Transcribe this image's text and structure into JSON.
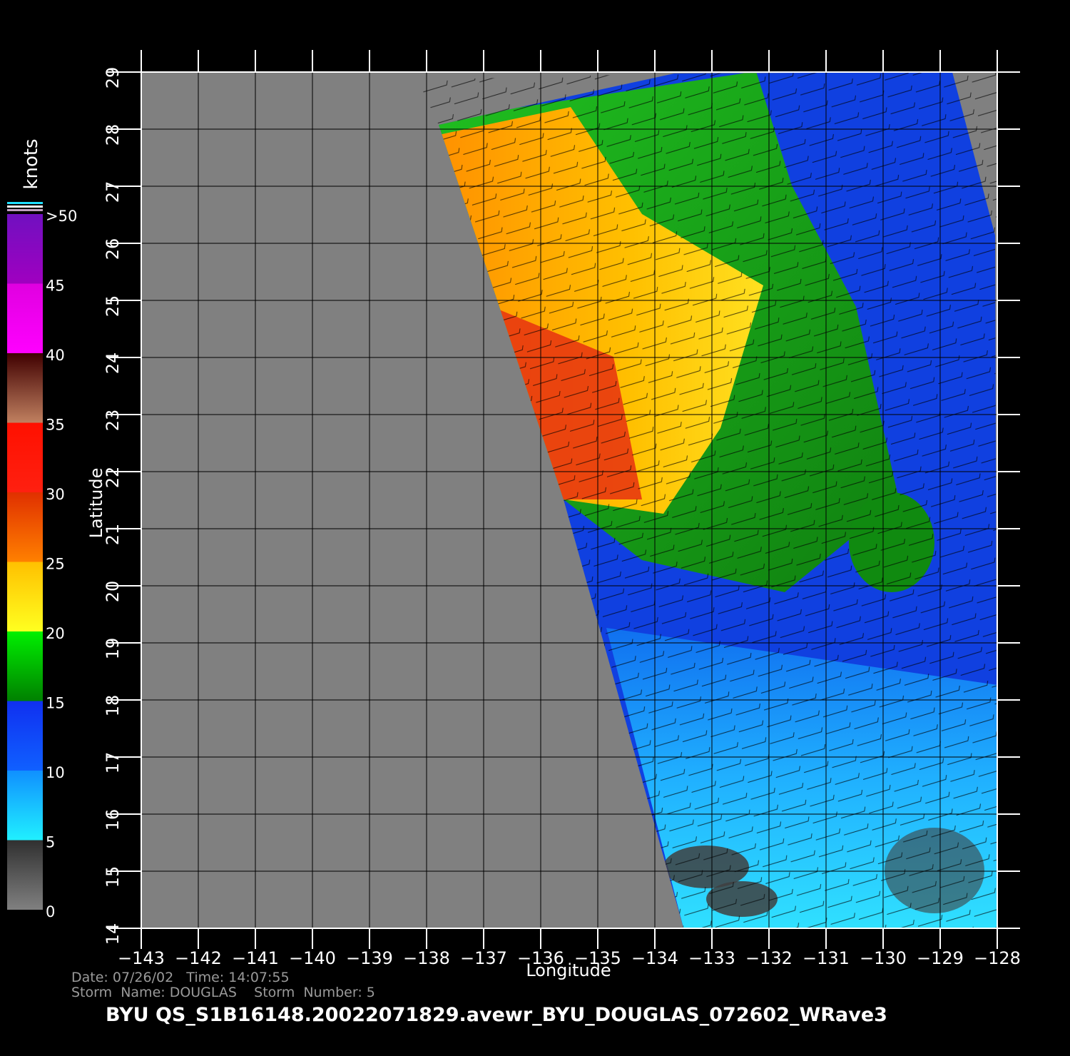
{
  "chart_data": {
    "type": "swath-map",
    "title": "BYU  QS_S1B16148.20022071829.avewr_BYU_DOUGLAS_072602_WRave3",
    "info": [
      "Date: 07/26/02   Time: 14:07:55",
      "Storm  Name: DOUGLAS    Storm  Number: 5"
    ],
    "x_label": "Longitude",
    "y_label": "Latitude",
    "xlim": [
      -143,
      -128
    ],
    "ylim": [
      14,
      29
    ],
    "xticks": [
      {
        "value": -143,
        "label": "−143"
      },
      {
        "value": -142,
        "label": "−142"
      },
      {
        "value": -141,
        "label": "−141"
      },
      {
        "value": -140,
        "label": "−140"
      },
      {
        "value": -139,
        "label": "−139"
      },
      {
        "value": -138,
        "label": "−138"
      },
      {
        "value": -137,
        "label": "−137"
      },
      {
        "value": -136,
        "label": "−136"
      },
      {
        "value": -135,
        "label": "−135"
      },
      {
        "value": -134,
        "label": "−134"
      },
      {
        "value": -133,
        "label": "−133"
      },
      {
        "value": -132,
        "label": "−132"
      },
      {
        "value": -131,
        "label": "−131"
      },
      {
        "value": -130,
        "label": "−130"
      },
      {
        "value": -129,
        "label": "−129"
      },
      {
        "value": -128,
        "label": "−128"
      }
    ],
    "yticks": [
      14,
      15,
      16,
      17,
      18,
      19,
      20,
      21,
      22,
      23,
      24,
      25,
      26,
      27,
      28,
      29
    ],
    "grid": true,
    "colorbar": {
      "label": "knots",
      "lim": [
        0,
        50
      ],
      "ticks": [
        0,
        5,
        10,
        15,
        20,
        25,
        30,
        35,
        40,
        45,
        {
          "value": 50,
          "label": ">50"
        }
      ],
      "colors": [
        [
          "#808080",
          "#303030"
        ],
        [
          "#20f0ff",
          "#1090ff"
        ],
        [
          "#1060ff",
          "#1030f0"
        ],
        [
          "#008000",
          "#00f000"
        ],
        [
          "#ffff20",
          "#ffc000"
        ],
        [
          "#ff8000",
          "#e03000"
        ],
        [
          "#ff2010",
          "#ff1000"
        ],
        [
          "#c08060",
          "#400000"
        ],
        [
          "#ff00ff",
          "#e000e0"
        ],
        [
          "#a000c0",
          "#7010c0"
        ]
      ]
    }
  }
}
